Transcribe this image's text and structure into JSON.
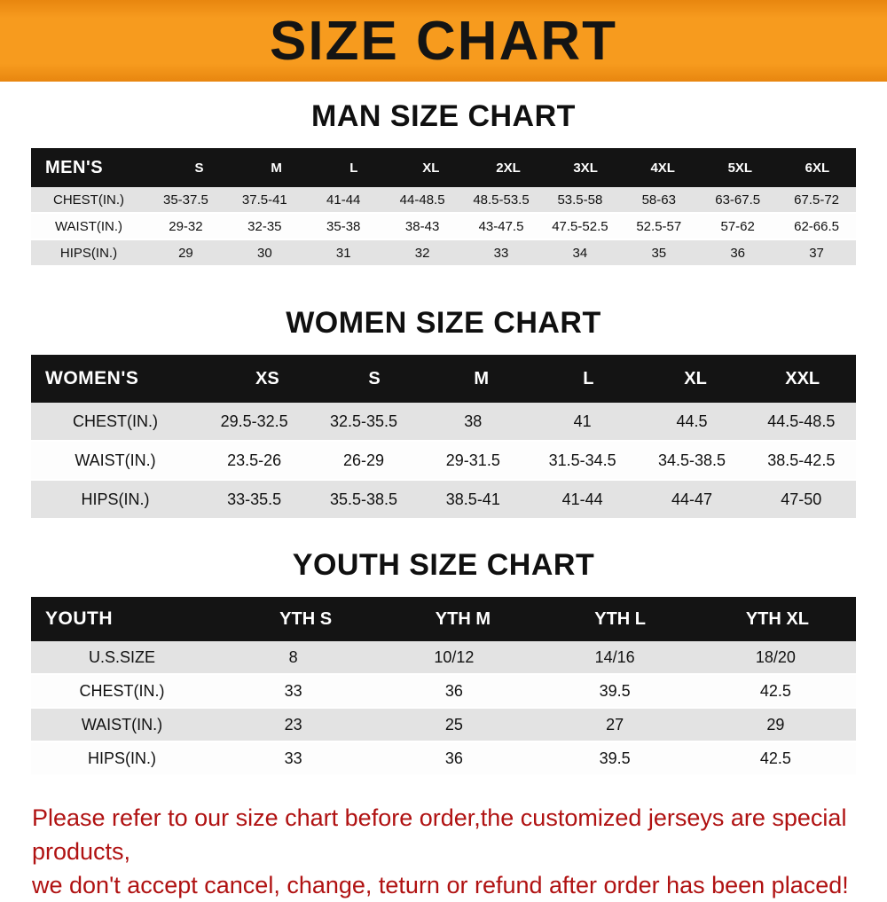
{
  "banner": {
    "title": "SIZE CHART"
  },
  "colors": {
    "banner_orange": "#f79b1e",
    "banner_orange_dark": "#e8860f",
    "header_black": "#141414",
    "row_stripe": "#e3e3e3",
    "note_red": "#b01212",
    "text_black": "#111111"
  },
  "men": {
    "heading": "MAN SIZE CHART",
    "table": {
      "label": "MEN'S",
      "sizes": [
        "S",
        "M",
        "L",
        "XL",
        "2XL",
        "3XL",
        "4XL",
        "5XL",
        "6XL"
      ],
      "rows": [
        {
          "label": "CHEST(IN.)",
          "values": [
            "35-37.5",
            "37.5-41",
            "41-44",
            "44-48.5",
            "48.5-53.5",
            "53.5-58",
            "58-63",
            "63-67.5",
            "67.5-72"
          ]
        },
        {
          "label": "WAIST(IN.)",
          "values": [
            "29-32",
            "32-35",
            "35-38",
            "38-43",
            "43-47.5",
            "47.5-52.5",
            "52.5-57",
            "57-62",
            "62-66.5"
          ]
        },
        {
          "label": "HIPS(IN.)",
          "values": [
            "29",
            "30",
            "31",
            "32",
            "33",
            "34",
            "35",
            "36",
            "37"
          ]
        }
      ]
    }
  },
  "women": {
    "heading": "WOMEN SIZE CHART",
    "table": {
      "label": "WOMEN'S",
      "sizes": [
        "XS",
        "S",
        "M",
        "L",
        "XL",
        "XXL"
      ],
      "rows": [
        {
          "label": "CHEST(IN.)",
          "values": [
            "29.5-32.5",
            "32.5-35.5",
            "38",
            "41",
            "44.5",
            "44.5-48.5"
          ]
        },
        {
          "label": "WAIST(IN.)",
          "values": [
            "23.5-26",
            "26-29",
            "29-31.5",
            "31.5-34.5",
            "34.5-38.5",
            "38.5-42.5"
          ]
        },
        {
          "label": "HIPS(IN.)",
          "values": [
            "33-35.5",
            "35.5-38.5",
            "38.5-41",
            "41-44",
            "44-47",
            "47-50"
          ]
        }
      ]
    }
  },
  "youth": {
    "heading": "YOUTH SIZE CHART",
    "table": {
      "label": "YOUTH",
      "sizes": [
        "YTH S",
        "YTH M",
        "YTH L",
        "YTH XL"
      ],
      "rows": [
        {
          "label": "U.S.SIZE",
          "values": [
            "8",
            "10/12",
            "14/16",
            "18/20"
          ]
        },
        {
          "label": "CHEST(IN.)",
          "values": [
            "33",
            "36",
            "39.5",
            "42.5"
          ]
        },
        {
          "label": "WAIST(IN.)",
          "values": [
            "23",
            "25",
            "27",
            "29"
          ]
        },
        {
          "label": "HIPS(IN.)",
          "values": [
            "33",
            "36",
            "39.5",
            "42.5"
          ]
        }
      ]
    }
  },
  "note": {
    "lines": [
      "Please refer to our size chart before order,the customized jerseys are special products,",
      "we don't accept cancel, change, teturn or refund after order has been placed!"
    ]
  }
}
